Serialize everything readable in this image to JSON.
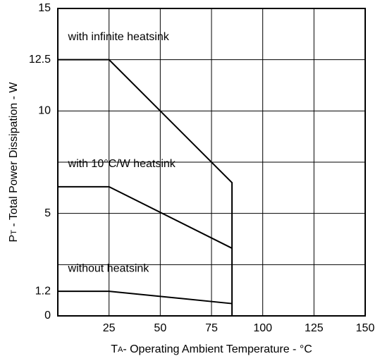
{
  "chart_data": {
    "type": "line",
    "xlabel": {
      "main": "T",
      "sub": "A",
      "rest": "- Operating Ambient Temperature - °C"
    },
    "ylabel": {
      "main": "P",
      "sub": "T",
      "rest": " - Total Power Dissipation - W"
    },
    "xlim": [
      0,
      150
    ],
    "xticks": [
      25,
      50,
      75,
      100,
      125,
      150
    ],
    "ylim": [
      0,
      15
    ],
    "yticks": [
      0,
      1.2,
      5,
      10,
      12.5,
      15
    ],
    "ygrid": [
      2.5,
      5,
      7.5,
      10,
      12.5
    ],
    "xgrid": [
      25,
      50,
      75,
      100,
      125
    ],
    "series": [
      {
        "name": "with infinite heatsink",
        "color": "#000000",
        "x": [
          0,
          25,
          85,
          85
        ],
        "values": [
          12.5,
          12.5,
          6.5,
          0
        ],
        "label_at": [
          5,
          13.6
        ]
      },
      {
        "name": "with 10°C/W heatsink",
        "color": "#000000",
        "x": [
          0,
          25,
          85
        ],
        "values": [
          6.3,
          6.3,
          3.3
        ],
        "label_at": [
          5,
          7.4
        ]
      },
      {
        "name": "without heatsink",
        "color": "#000000",
        "x": [
          0,
          25,
          85
        ],
        "values": [
          1.2,
          1.2,
          0.6
        ],
        "label_at": [
          5,
          2.3
        ]
      }
    ]
  }
}
